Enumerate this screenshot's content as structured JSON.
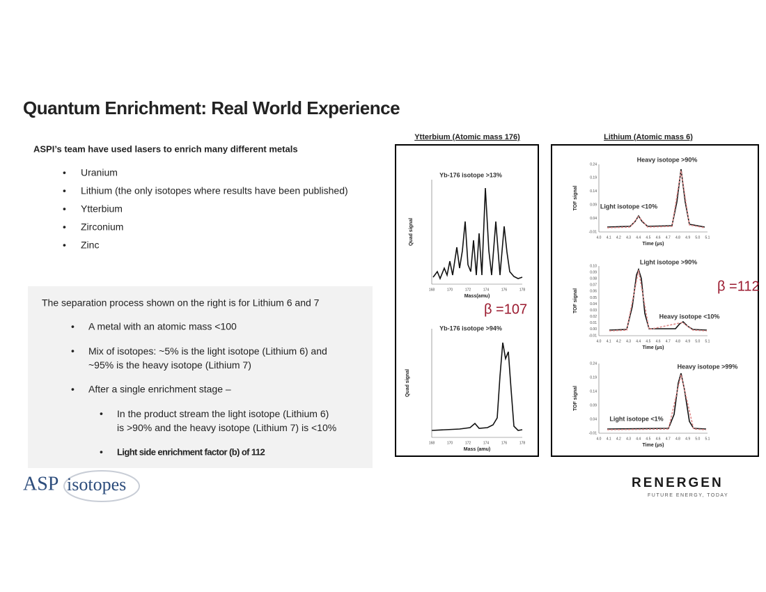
{
  "title": "Quantum Enrichment: Real World Experience",
  "intro": "ASPI’s team have used lasers to enrich many different metals",
  "metals": [
    "Uranium",
    "Lithium (the only isotopes where results have been published)",
    "Ytterbium",
    "Zirconium",
    "Zinc"
  ],
  "box": {
    "heading": "The separation process shown on the right is for Lithium 6 and 7",
    "bullets": [
      "A metal with an atomic mass <100",
      "Mix of isotopes: ~5% is the light isotope (Lithium 6) and ~95% is the heavy isotope (Lithium 7)",
      "After a single enrichment stage –"
    ],
    "sub_bullets": [
      "In the product stream the light isotope (Lithium 6) is >90% and the heavy isotope (Lithium 7) is <10%",
      "Light side enrichment factor (b) of 112"
    ]
  },
  "ytterbium": {
    "title": "Ytterbium (Atomic mass 176)",
    "beta": "β =107",
    "plots": [
      {
        "annotation": "Yb-176 isotope >13%",
        "ylabel": "Quad signal",
        "xlabel": "Mass(amu)",
        "xticks": [
          "168",
          "170",
          "172",
          "174",
          "176",
          "178"
        ]
      },
      {
        "annotation": "Yb-176 isotope >94%",
        "ylabel": "Quad signal",
        "xlabel": "Mass (amu)",
        "xticks": [
          "168",
          "170",
          "172",
          "174",
          "176",
          "178"
        ]
      }
    ]
  },
  "lithium": {
    "title": "Lithium (Atomic mass 6)",
    "beta": "β =112",
    "plots": [
      {
        "annotations": [
          "Heavy isotope >90%",
          "Light isotope <10%"
        ],
        "ylabel": "TOF signal",
        "xlabel": "Time (μs)",
        "yticks": [
          "0.24",
          "0.19",
          "0.14",
          "0.09",
          "0.04",
          "-0.01"
        ],
        "xticks": [
          "4.0",
          "4.1",
          "4.2",
          "4.3",
          "4.4",
          "4.5",
          "4.6",
          "4.7",
          "4.8",
          "4.9",
          "5.0",
          "5.1"
        ]
      },
      {
        "annotations": [
          "Light isotope >90%",
          "Heavy isotope <10%"
        ],
        "ylabel": "TOF signal",
        "xlabel": "Time (μs)",
        "yticks": [
          "0.10",
          "0.09",
          "0.08",
          "0.07",
          "0.06",
          "0.05",
          "0.04",
          "0.03",
          "0.02",
          "0.01",
          "0.00",
          "-0.01"
        ],
        "xticks": [
          "4.0",
          "4.1",
          "4.2",
          "4.3",
          "4.4",
          "4.5",
          "4.6",
          "4.7",
          "4.8",
          "4.9",
          "5.0",
          "5.1"
        ]
      },
      {
        "annotations": [
          "Heavy isotope >99%",
          "Light isotope <1%"
        ],
        "ylabel": "TOF signal",
        "xlabel": "Time (μs)",
        "yticks": [
          "0.24",
          "0.19",
          "0.14",
          "0.09",
          "0.04",
          "-0.01"
        ],
        "xticks": [
          "4.0",
          "4.1",
          "4.2",
          "4.3",
          "4.4",
          "4.5",
          "4.6",
          "4.7",
          "4.8",
          "4.9",
          "5.0",
          "5.1"
        ]
      }
    ]
  },
  "logos": {
    "asp_1": "ASP",
    "asp_2": "isotopes",
    "renergen": "RENERGEN",
    "tagline": "FUTURE ENERGY, TODAY"
  }
}
